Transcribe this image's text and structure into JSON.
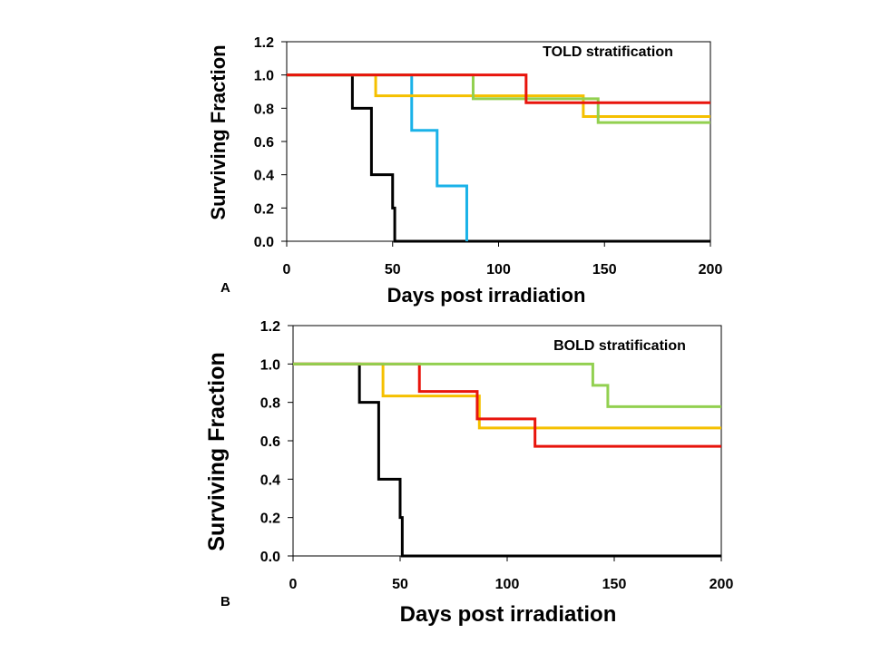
{
  "chart_data": [
    {
      "type": "line",
      "subtype": "kaplan-meier",
      "panel_label": "A",
      "title": "TOLD stratification",
      "xlabel": "Days post irradiation",
      "ylabel": "Surviving Fraction",
      "xlim": [
        0,
        200
      ],
      "ylim": [
        0,
        1.2
      ],
      "xticks": [
        "0",
        "50",
        "100",
        "150",
        "200"
      ],
      "yticks": [
        "0.0",
        "0.2",
        "0.4",
        "0.6",
        "0.8",
        "1.0",
        "1.2"
      ],
      "grid": false,
      "series": [
        {
          "name": "black",
          "color": "#000000",
          "steps": [
            [
              0,
              1.0
            ],
            [
              31,
              0.8
            ],
            [
              40,
              0.4
            ],
            [
              50,
              0.2
            ],
            [
              51,
              0.0
            ],
            [
              200,
              0.0
            ]
          ]
        },
        {
          "name": "blue",
          "color": "#1AB2E8",
          "steps": [
            [
              0,
              1.0
            ],
            [
              59,
              0.667
            ],
            [
              71,
              0.333
            ],
            [
              85,
              0.0
            ]
          ]
        },
        {
          "name": "yellow",
          "color": "#F5C000",
          "steps": [
            [
              0,
              1.0
            ],
            [
              42,
              0.875
            ],
            [
              140,
              0.75
            ],
            [
              200,
              0.75
            ]
          ]
        },
        {
          "name": "green",
          "color": "#92D050",
          "steps": [
            [
              0,
              1.0
            ],
            [
              88,
              0.857
            ],
            [
              147,
              0.714
            ],
            [
              200,
              0.714
            ]
          ]
        },
        {
          "name": "red",
          "color": "#E8140C",
          "steps": [
            [
              0,
              1.0
            ],
            [
              113,
              0.833
            ],
            [
              200,
              0.833
            ]
          ]
        }
      ]
    },
    {
      "type": "line",
      "subtype": "kaplan-meier",
      "panel_label": "B",
      "title": "BOLD stratification",
      "xlabel": "Days post irradiation",
      "ylabel": "Surviving Fraction",
      "xlim": [
        0,
        200
      ],
      "ylim": [
        0,
        1.2
      ],
      "xticks": [
        "0",
        "50",
        "100",
        "150",
        "200"
      ],
      "yticks": [
        "0.0",
        "0.2",
        "0.4",
        "0.6",
        "0.8",
        "1.0",
        "1.2"
      ],
      "grid": false,
      "series": [
        {
          "name": "black",
          "color": "#000000",
          "steps": [
            [
              0,
              1.0
            ],
            [
              31,
              0.8
            ],
            [
              40,
              0.4
            ],
            [
              50,
              0.2
            ],
            [
              51,
              0.0
            ],
            [
              200,
              0.0
            ]
          ]
        },
        {
          "name": "yellow",
          "color": "#F5C000",
          "steps": [
            [
              0,
              1.0
            ],
            [
              42,
              0.833
            ],
            [
              87,
              0.667
            ],
            [
              200,
              0.667
            ]
          ]
        },
        {
          "name": "red",
          "color": "#E8140C",
          "steps": [
            [
              0,
              1.0
            ],
            [
              59,
              0.857
            ],
            [
              86,
              0.714
            ],
            [
              113,
              0.571
            ],
            [
              200,
              0.571
            ]
          ]
        },
        {
          "name": "green",
          "color": "#92D050",
          "steps": [
            [
              0,
              1.0
            ],
            [
              140,
              0.889
            ],
            [
              147,
              0.778
            ],
            [
              200,
              0.778
            ]
          ]
        }
      ]
    }
  ]
}
